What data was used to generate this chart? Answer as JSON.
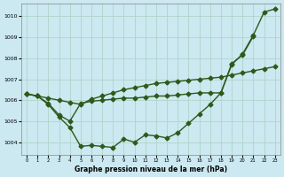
{
  "xlabel": "Graphe pression niveau de la mer (hPa)",
  "bg_color": "#cce8f0",
  "grid_color": "#b0d4cc",
  "line_color": "#2d5a1b",
  "marker": "D",
  "markersize": 2.5,
  "linewidth": 1.0,
  "xlim": [
    -0.5,
    23.5
  ],
  "ylim": [
    1003.4,
    1010.6
  ],
  "yticks": [
    1004,
    1005,
    1006,
    1007,
    1008,
    1009,
    1010
  ],
  "xticks": [
    0,
    1,
    2,
    3,
    4,
    5,
    6,
    7,
    8,
    9,
    10,
    11,
    12,
    13,
    14,
    15,
    16,
    17,
    18,
    19,
    20,
    21,
    22,
    23
  ],
  "line1_x": [
    0,
    1,
    2,
    3,
    4,
    5,
    6,
    7,
    8,
    9,
    10,
    11,
    12,
    13,
    14,
    15,
    16,
    17,
    18,
    19,
    20,
    21,
    22,
    23
  ],
  "line1_y": [
    1006.3,
    1006.2,
    1005.8,
    1005.2,
    1004.7,
    1003.8,
    1003.85,
    1003.8,
    1003.75,
    1004.15,
    1004.0,
    1004.35,
    1004.3,
    1004.2,
    1004.45,
    1004.9,
    1005.35,
    1005.8,
    1006.35,
    1007.7,
    1008.2,
    1009.1,
    1010.2,
    1010.35
  ],
  "line2_x": [
    0,
    1,
    2,
    3,
    4,
    5,
    6,
    7,
    8,
    9,
    10,
    11,
    12,
    13,
    14,
    15,
    16,
    17,
    18,
    19,
    20,
    21
  ],
  "line2_y": [
    1006.3,
    1006.2,
    1005.85,
    1005.3,
    1005.0,
    1005.85,
    1005.95,
    1006.0,
    1006.05,
    1006.1,
    1006.1,
    1006.15,
    1006.2,
    1006.2,
    1006.25,
    1006.3,
    1006.35,
    1006.35,
    1006.35,
    1007.75,
    1008.15,
    1009.05
  ],
  "line3_x": [
    0,
    1,
    2,
    3,
    4,
    5,
    6,
    7,
    8,
    9,
    10,
    11,
    12,
    13,
    14,
    15,
    16,
    17,
    18,
    19,
    20,
    21,
    22,
    23
  ],
  "line3_y": [
    1006.3,
    1006.2,
    1006.1,
    1006.0,
    1005.9,
    1005.8,
    1006.05,
    1006.2,
    1006.35,
    1006.5,
    1006.6,
    1006.7,
    1006.8,
    1006.85,
    1006.9,
    1006.95,
    1007.0,
    1007.05,
    1007.1,
    1007.2,
    1007.3,
    1007.4,
    1007.5,
    1007.6
  ]
}
